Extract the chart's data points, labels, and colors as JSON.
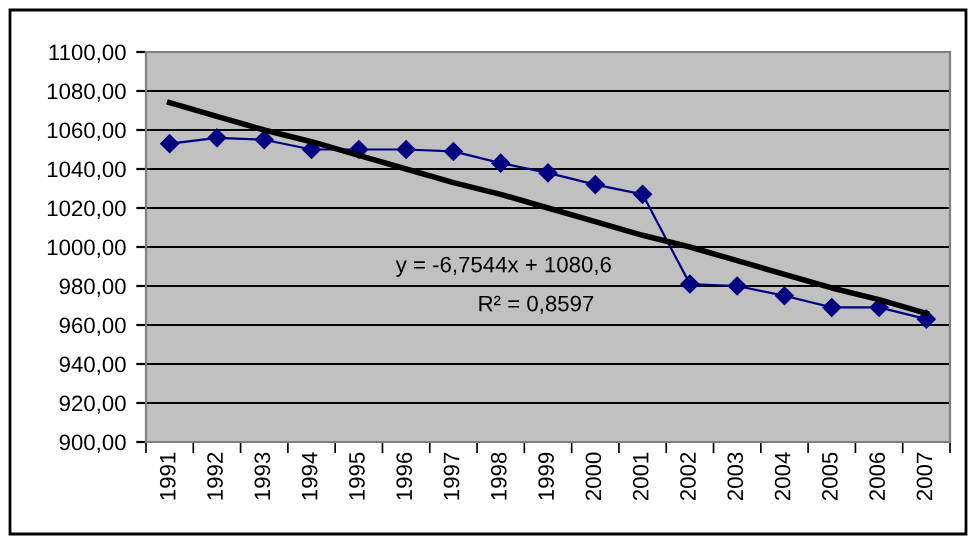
{
  "chart_data": {
    "type": "line",
    "categories": [
      "1991",
      "1992",
      "1993",
      "1994",
      "1995",
      "1996",
      "1997",
      "1998",
      "1999",
      "2000",
      "2001",
      "2002",
      "2003",
      "2004",
      "2005",
      "2006",
      "2007"
    ],
    "series": [
      {
        "color": "#000080",
        "marker": "diamond",
        "values": [
          1053,
          1056,
          1055,
          1050,
          1050,
          1050,
          1049,
          1043,
          1038,
          1032,
          1027,
          981,
          980,
          975,
          969,
          969,
          963
        ]
      },
      {
        "color": "#000000",
        "marker": "none",
        "values": [
          1074,
          1067,
          1060,
          1054,
          1047,
          1040,
          1033,
          1027,
          1020,
          1013,
          1006,
          1000,
          993,
          986,
          979,
          973,
          966
        ]
      }
    ],
    "ylim": [
      900,
      1100
    ],
    "yticks": [
      {
        "value": 900,
        "label": "900,00"
      },
      {
        "value": 920,
        "label": "920,00"
      },
      {
        "value": 940,
        "label": "940,00"
      },
      {
        "value": 960,
        "label": "960,00"
      },
      {
        "value": 980,
        "label": "980,00"
      },
      {
        "value": 1000,
        "label": "1000,00"
      },
      {
        "value": 1020,
        "label": "1020,00"
      },
      {
        "value": 1040,
        "label": "1040,00"
      },
      {
        "value": 1060,
        "label": "1060,00"
      },
      {
        "value": 1080,
        "label": "1080,00"
      },
      {
        "value": 1100,
        "label": "1100,00"
      }
    ],
    "grid": "y",
    "annotations": [
      "y = -6,7544x + 1080,6",
      "R² = 0,8597"
    ]
  }
}
